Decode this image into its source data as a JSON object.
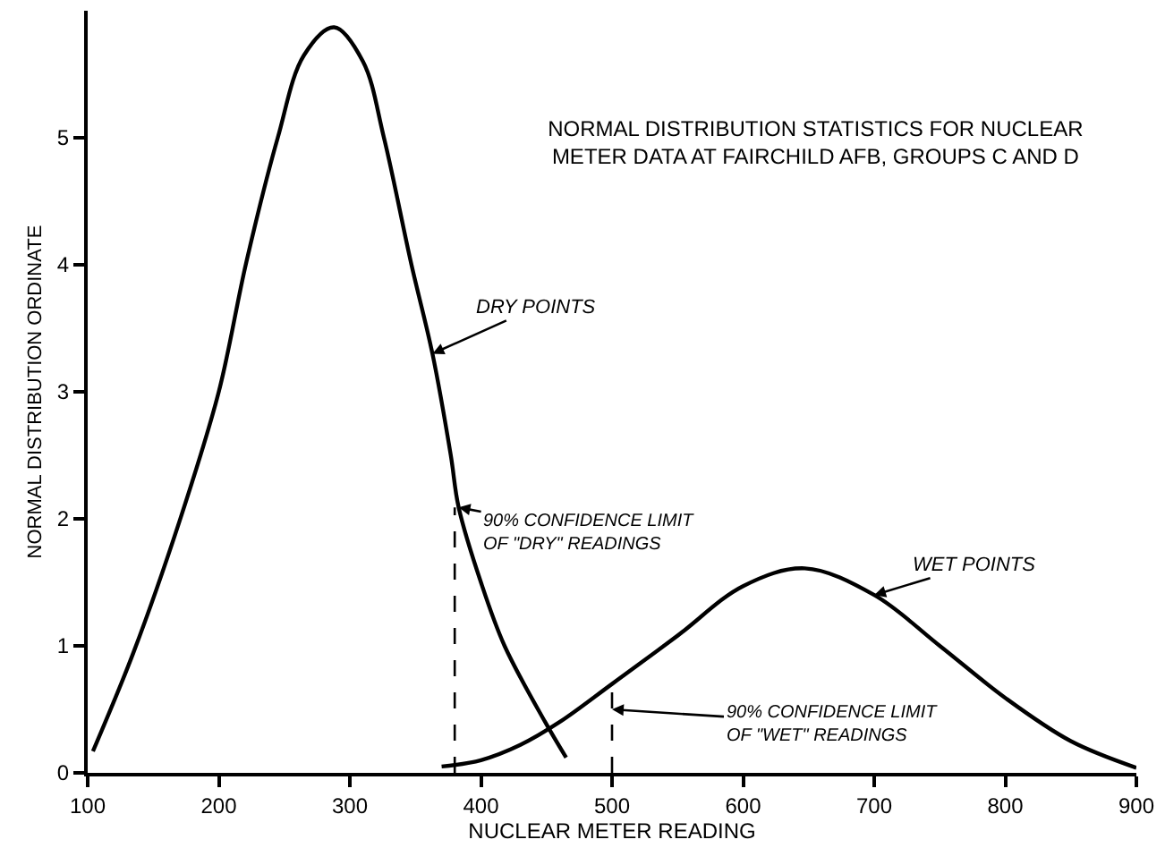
{
  "chart_data": {
    "type": "line",
    "title": "NORMAL DISTRIBUTION STATISTICS FOR NUCLEAR\nMETER DATA AT FAIRCHILD AFB, GROUPS C AND D",
    "xlabel": "NUCLEAR METER READING",
    "ylabel": "NORMAL DISTRIBUTION ORDINATE",
    "xlim": [
      100,
      900
    ],
    "xticks": [
      100,
      200,
      300,
      400,
      500,
      600,
      700,
      800,
      900
    ],
    "ylim": [
      0,
      6
    ],
    "yticks": [
      0,
      1,
      2,
      3,
      4,
      5
    ],
    "legend": false,
    "marker": "none",
    "series": [
      {
        "name": "DRY POINTS",
        "color": "#000000",
        "line_style": "solid",
        "x": [
          104,
          135,
          170,
          200,
          221,
          245,
          265,
          288,
          310,
          326,
          347,
          363,
          377,
          383,
          400,
          418,
          449,
          465
        ],
        "values": [
          0.17,
          0.95,
          1.98,
          3.0,
          4.02,
          5.0,
          5.65,
          5.87,
          5.6,
          5.0,
          4.0,
          3.3,
          2.5,
          2.09,
          1.5,
          1.0,
          0.4,
          0.12
        ]
      },
      {
        "name": "WET POINTS",
        "color": "#000000",
        "line_style": "solid",
        "x": [
          370,
          400,
          430,
          460,
          500,
          550,
          600,
          647,
          700,
          750,
          800,
          850,
          900
        ],
        "values": [
          0.05,
          0.1,
          0.22,
          0.4,
          0.7,
          1.08,
          1.47,
          1.61,
          1.4,
          1.0,
          0.59,
          0.25,
          0.04
        ]
      },
      {
        "color": "#000000",
        "line_style": "dashed",
        "x": [
          380,
          380
        ],
        "values": [
          0,
          2.09
        ]
      },
      {
        "color": "#000000",
        "line_style": "dashed",
        "x": [
          500,
          500
        ],
        "values": [
          0,
          0.7
        ]
      }
    ],
    "annotations": [
      {
        "text": "90% CONFIDENCE LIMIT\nOF \"DRY\" READINGS",
        "x": 383,
        "y": 2.09
      },
      {
        "text": "90% CONFIDENCE LIMIT\nOF \"WET\" READINGS",
        "x": 500,
        "y": 0.5
      }
    ]
  }
}
